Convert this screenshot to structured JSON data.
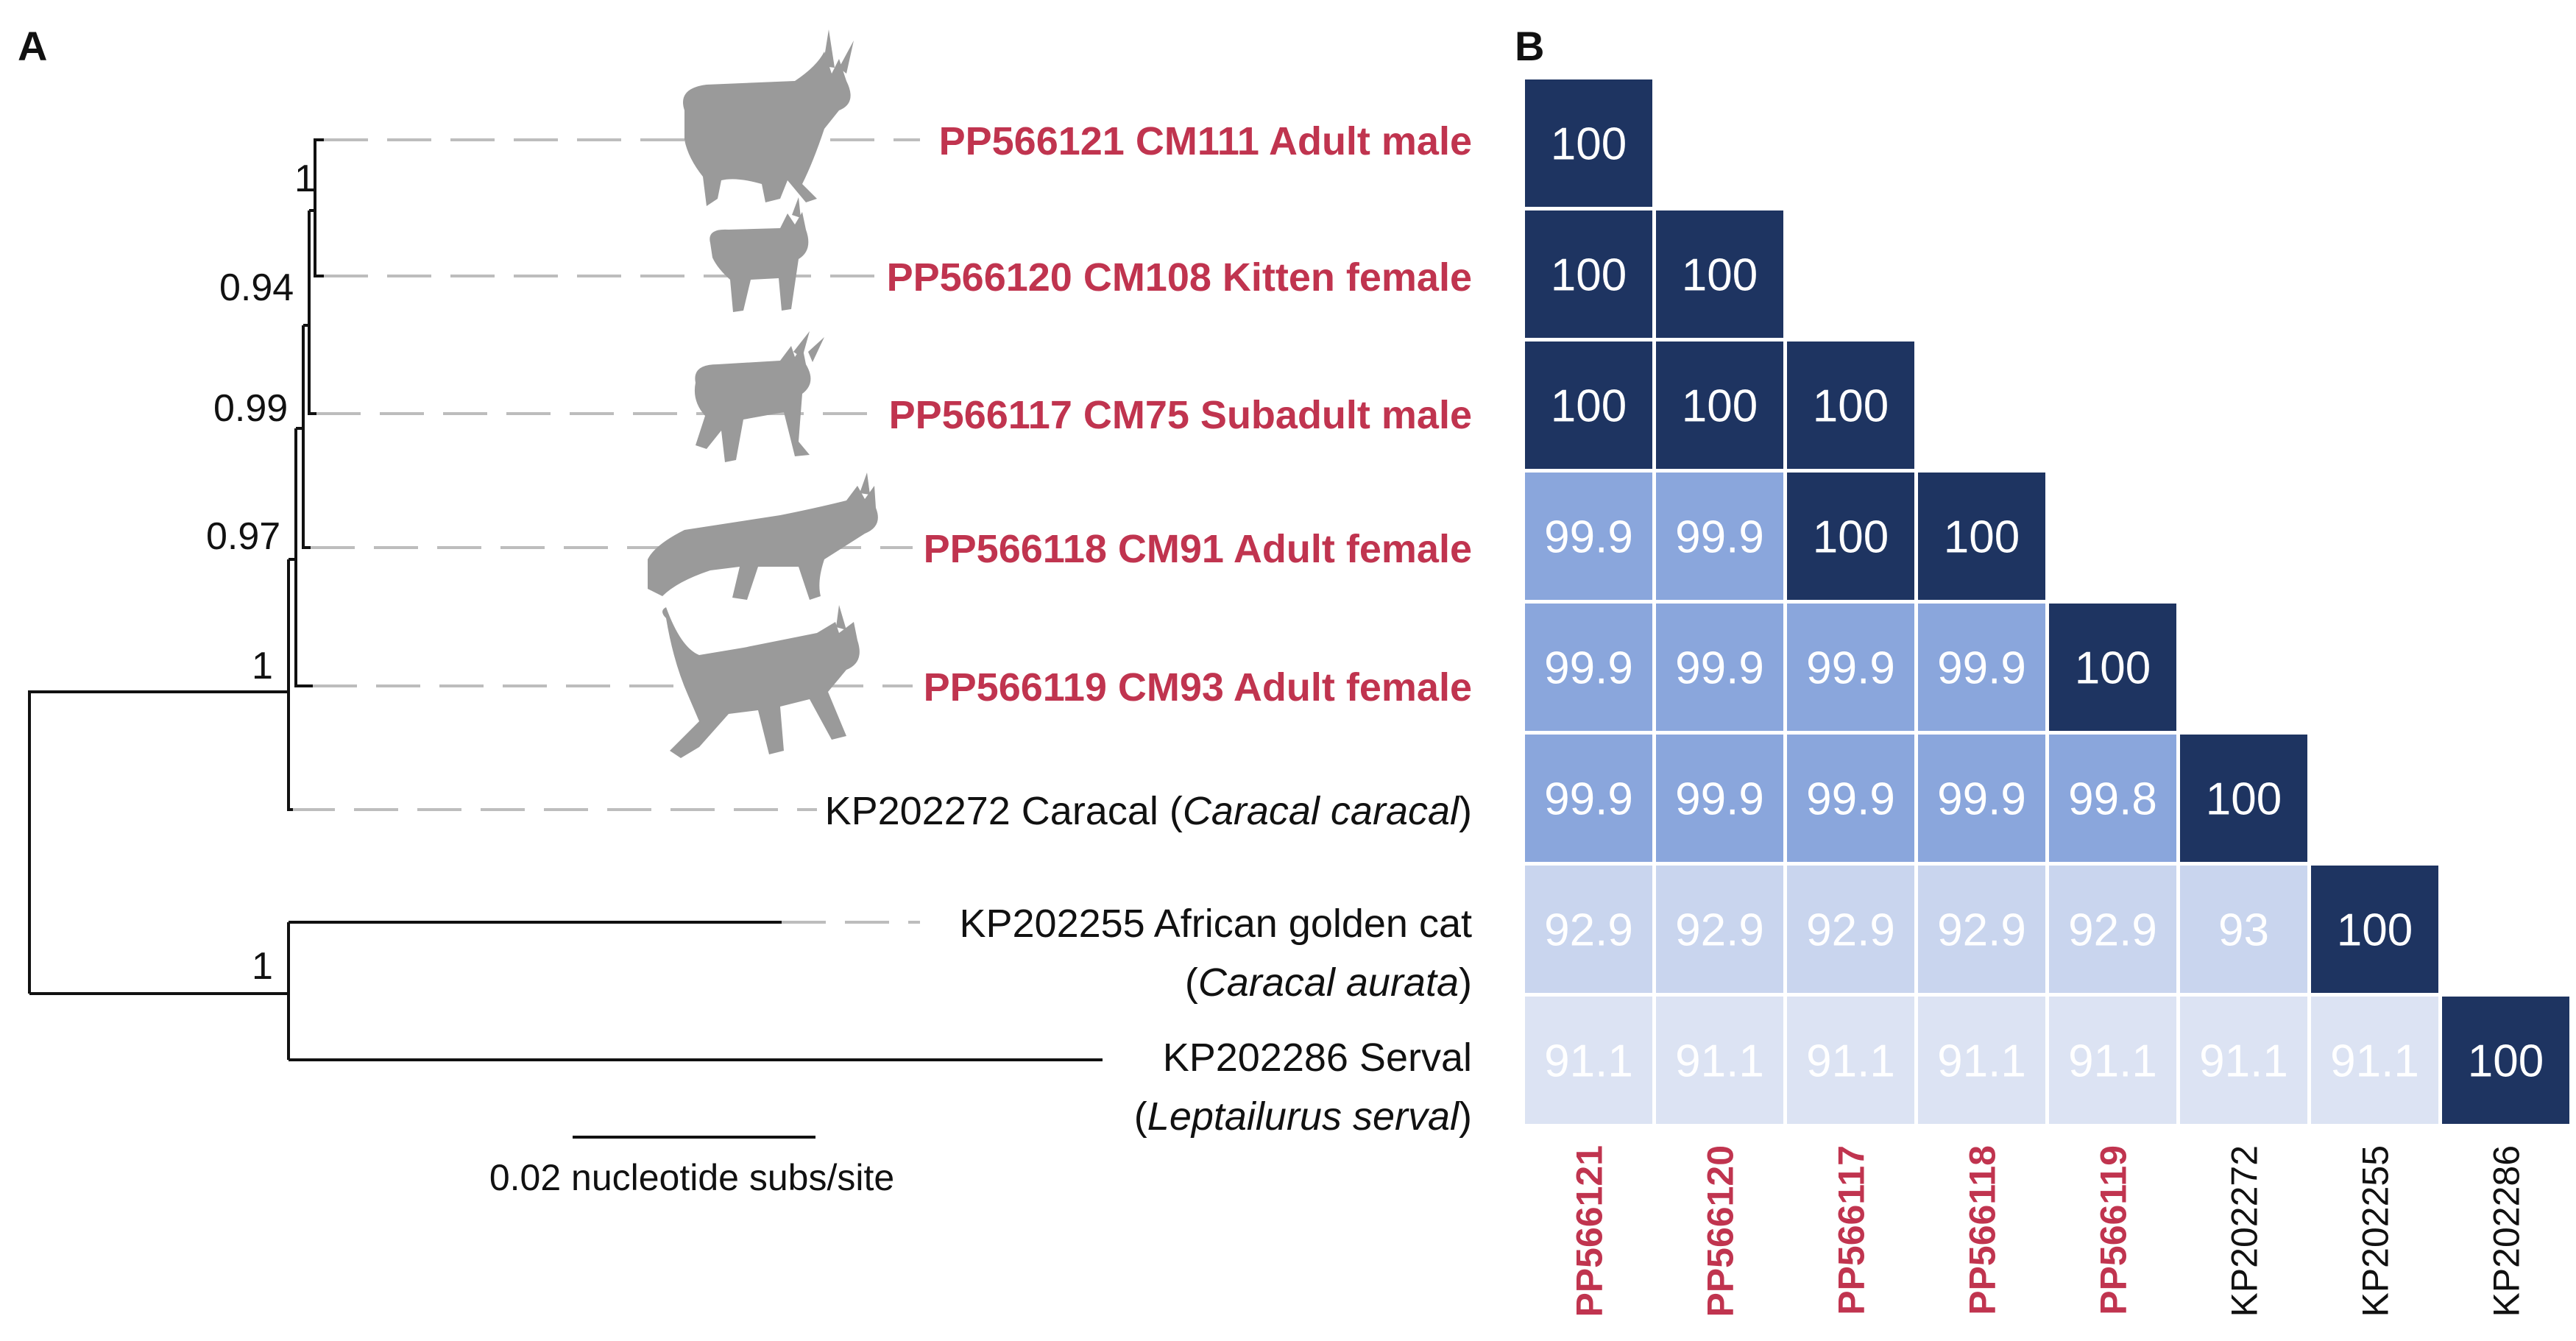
{
  "panels": {
    "a_label": "A",
    "b_label": "B"
  },
  "tree": {
    "tips": [
      {
        "id": "PP566121",
        "label": "PP566121 CM111 Adult male",
        "highlight": true
      },
      {
        "id": "PP566120",
        "label": "PP566120 CM108 Kitten female",
        "highlight": true
      },
      {
        "id": "PP566117",
        "label": "PP566117 CM75 Subadult male",
        "highlight": true
      },
      {
        "id": "PP566118",
        "label": "PP566118 CM91 Adult female",
        "highlight": true
      },
      {
        "id": "PP566119",
        "label": "PP566119 CM93 Adult female",
        "highlight": true
      },
      {
        "id": "KP202272",
        "label_prefix": "KP202272 Caracal (",
        "label_italic": "Caracal caracal",
        "label_suffix": ")",
        "highlight": false
      },
      {
        "id": "KP202255",
        "label_line1": "KP202255 African golden cat",
        "label_prefix": "(",
        "label_italic": "Caracal aurata",
        "label_suffix": ")",
        "highlight": false
      },
      {
        "id": "KP202286",
        "label_line1": "KP202286 Serval",
        "label_prefix": "(",
        "label_italic": "Leptailurus serval",
        "label_suffix": ")",
        "highlight": false
      }
    ],
    "supports": [
      "1",
      "0.94",
      "0.99",
      "0.97",
      "1",
      "1"
    ],
    "scale_bar_label": "0.02 nucleotide subs/site",
    "silhouettes": [
      "caracal-adult-male-icon",
      "caracal-kitten-icon",
      "caracal-subadult-icon",
      "caracal-adult-female-icon",
      "caracal-adult-female-walking-icon"
    ]
  },
  "matrix": {
    "columns": [
      "PP566121",
      "PP566120",
      "PP566117",
      "PP566118",
      "PP566119",
      "KP202272",
      "KP202255",
      "KP202286"
    ],
    "column_highlight": [
      true,
      true,
      true,
      true,
      true,
      false,
      false,
      false
    ],
    "rows": [
      [
        "100"
      ],
      [
        "100",
        "100"
      ],
      [
        "100",
        "100",
        "100"
      ],
      [
        "99.9",
        "99.9",
        "100",
        "100"
      ],
      [
        "99.9",
        "99.9",
        "99.9",
        "99.9",
        "100"
      ],
      [
        "99.9",
        "99.9",
        "99.9",
        "99.9",
        "99.8",
        "100"
      ],
      [
        "92.9",
        "92.9",
        "92.9",
        "92.9",
        "92.9",
        "93",
        "100"
      ],
      [
        "91.1",
        "91.1",
        "91.1",
        "91.1",
        "91.1",
        "91.1",
        "91.1",
        "100"
      ]
    ],
    "colors": {
      "identity_100": "#1e3461",
      "high_99": "#8aa6dc",
      "mid_93": "#c9d5ee",
      "low_91": "#dce3f3"
    }
  }
}
